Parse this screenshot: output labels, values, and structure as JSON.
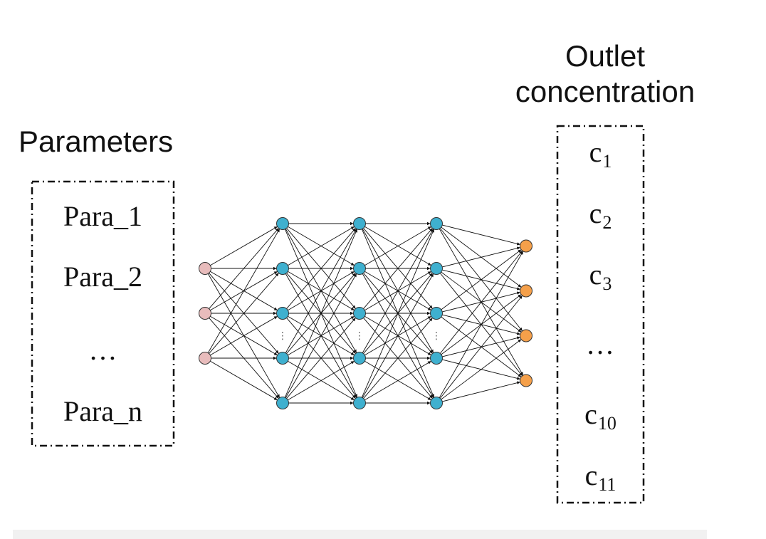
{
  "titles": {
    "parameters": "Parameters",
    "outlet_line1": "Outlet",
    "outlet_line2": "concentration"
  },
  "parameters": [
    "Para_1",
    "Para_2",
    "…",
    "Para_n"
  ],
  "outputs": [
    {
      "base": "c",
      "sub": "1"
    },
    {
      "base": "c",
      "sub": "2"
    },
    {
      "base": "c",
      "sub": "3"
    },
    {
      "base": "…",
      "sub": ""
    },
    {
      "base": "c",
      "sub": "10"
    },
    {
      "base": "c",
      "sub": "11"
    }
  ],
  "network": {
    "layers": [
      3,
      5,
      5,
      5,
      4
    ],
    "hidden_ellipsis": "⋮",
    "colors": {
      "input": "#e8bcbc",
      "hidden": "#3fb0cf",
      "output": "#f5a04a",
      "edge": "#111111"
    }
  }
}
